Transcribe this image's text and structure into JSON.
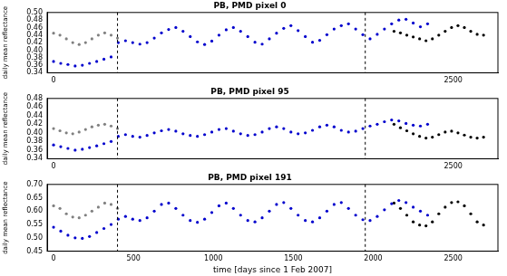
{
  "chart_data": [
    {
      "type": "scatter",
      "title": "PB, PMD pixel 0",
      "y_label": "daily mean reflectance",
      "xlim": [
        -40,
        2780
      ],
      "xticks": [
        0,
        2500
      ],
      "ylim": [
        0.34,
        0.5
      ],
      "yticks": [
        0.34,
        0.36,
        0.38,
        {
          "value": 0.4,
          "label": "0.40"
        },
        0.42,
        0.44,
        0.46,
        0.48,
        {
          "value": 0.5,
          "label": "0.50"
        }
      ],
      "vlines": [
        400,
        1950
      ],
      "grid": false,
      "series": [
        {
          "color": "#808080",
          "marker": "circle",
          "x": [
            0,
            40,
            80,
            120,
            160,
            200,
            240,
            280,
            320,
            360,
            400
          ],
          "values": [
            0.445,
            0.44,
            0.43,
            0.42,
            0.415,
            0.42,
            0.43,
            0.44,
            0.446,
            0.44,
            0.432
          ]
        },
        {
          "color": "#0000cd",
          "marker": "circle",
          "x": [
            0,
            45,
            90,
            135,
            180,
            225,
            270,
            315,
            360,
            405,
            450,
            495,
            540,
            585,
            630,
            675,
            720,
            765,
            810,
            855,
            900,
            945,
            990,
            1035,
            1080,
            1125,
            1170,
            1215,
            1260,
            1305,
            1350,
            1395,
            1440,
            1485,
            1530,
            1575,
            1620,
            1665,
            1710,
            1755,
            1800,
            1845,
            1890,
            1935,
            1980,
            2025,
            2070,
            2115,
            2160,
            2205,
            2250,
            2295,
            2340
          ],
          "values": [
            0.37,
            0.365,
            0.362,
            0.358,
            0.36,
            0.365,
            0.37,
            0.376,
            0.382,
            0.42,
            0.425,
            0.42,
            0.416,
            0.42,
            0.432,
            0.446,
            0.455,
            0.46,
            0.45,
            0.436,
            0.422,
            0.415,
            0.424,
            0.44,
            0.454,
            0.46,
            0.45,
            0.436,
            0.421,
            0.416,
            0.43,
            0.445,
            0.458,
            0.465,
            0.452,
            0.436,
            0.421,
            0.426,
            0.441,
            0.456,
            0.465,
            0.47,
            0.456,
            0.441,
            0.43,
            0.442,
            0.456,
            0.47,
            0.48,
            0.482,
            0.472,
            0.462,
            0.47
          ]
        },
        {
          "color": "#000000",
          "marker": "circle",
          "x": [
            2130,
            2170,
            2210,
            2250,
            2290,
            2330,
            2370,
            2410,
            2450,
            2490,
            2530,
            2570,
            2610,
            2650,
            2690
          ],
          "values": [
            0.45,
            0.446,
            0.44,
            0.435,
            0.43,
            0.425,
            0.43,
            0.44,
            0.45,
            0.46,
            0.465,
            0.46,
            0.45,
            0.442,
            0.44
          ]
        }
      ]
    },
    {
      "type": "scatter",
      "title": "PB, PMD pixel 95",
      "y_label": "daily mean reflectance",
      "xlim": [
        -40,
        2780
      ],
      "xticks": [
        0,
        2500
      ],
      "ylim": [
        0.34,
        0.48
      ],
      "yticks": [
        0.34,
        0.36,
        0.38,
        {
          "value": 0.4,
          "label": "0.40"
        },
        0.42,
        0.44,
        0.46,
        0.48
      ],
      "vlines": [
        400,
        1950
      ],
      "grid": false,
      "series": [
        {
          "color": "#808080",
          "marker": "circle",
          "x": [
            0,
            40,
            80,
            120,
            160,
            200,
            240,
            280,
            320,
            360,
            400
          ],
          "values": [
            0.41,
            0.405,
            0.4,
            0.398,
            0.402,
            0.408,
            0.414,
            0.418,
            0.42,
            0.416,
            0.41
          ]
        },
        {
          "color": "#0000cd",
          "marker": "circle",
          "x": [
            0,
            45,
            90,
            135,
            180,
            225,
            270,
            315,
            360,
            405,
            450,
            495,
            540,
            585,
            630,
            675,
            720,
            765,
            810,
            855,
            900,
            945,
            990,
            1035,
            1080,
            1125,
            1170,
            1215,
            1260,
            1305,
            1350,
            1395,
            1440,
            1485,
            1530,
            1575,
            1620,
            1665,
            1710,
            1755,
            1800,
            1845,
            1890,
            1935,
            1980,
            2025,
            2070,
            2115,
            2160,
            2205,
            2250,
            2295,
            2340
          ],
          "values": [
            0.372,
            0.368,
            0.364,
            0.36,
            0.362,
            0.366,
            0.37,
            0.375,
            0.38,
            0.392,
            0.396,
            0.392,
            0.39,
            0.394,
            0.4,
            0.405,
            0.408,
            0.404,
            0.398,
            0.394,
            0.392,
            0.396,
            0.402,
            0.408,
            0.41,
            0.404,
            0.398,
            0.394,
            0.396,
            0.402,
            0.41,
            0.414,
            0.41,
            0.402,
            0.398,
            0.4,
            0.406,
            0.414,
            0.418,
            0.414,
            0.406,
            0.402,
            0.404,
            0.41,
            0.416,
            0.42,
            0.426,
            0.43,
            0.428,
            0.422,
            0.418,
            0.416,
            0.42
          ]
        },
        {
          "color": "#000000",
          "marker": "circle",
          "x": [
            2130,
            2170,
            2210,
            2250,
            2290,
            2330,
            2370,
            2410,
            2450,
            2490,
            2530,
            2570,
            2610,
            2650,
            2690
          ],
          "values": [
            0.42,
            0.412,
            0.405,
            0.398,
            0.392,
            0.388,
            0.39,
            0.396,
            0.402,
            0.404,
            0.4,
            0.395,
            0.39,
            0.388,
            0.39
          ]
        }
      ]
    },
    {
      "type": "scatter",
      "title": "PB, PMD pixel 191",
      "y_label": "daily mean reflectance",
      "x_label": "time [days since 1 Feb 2007]",
      "xlim": [
        -40,
        2780
      ],
      "xticks": [
        0,
        500,
        1000,
        1500,
        2000,
        2500
      ],
      "ylim": [
        0.45,
        0.7
      ],
      "yticks": [
        0.45,
        {
          "value": 0.5,
          "label": "0.50"
        },
        0.55,
        {
          "value": 0.6,
          "label": "0.60"
        },
        0.65,
        {
          "value": 0.7,
          "label": "0.70"
        }
      ],
      "vlines": [
        400,
        1950
      ],
      "grid": false,
      "series": [
        {
          "color": "#808080",
          "marker": "circle",
          "x": [
            0,
            40,
            80,
            120,
            160,
            200,
            240,
            280,
            320,
            360,
            400
          ],
          "values": [
            0.62,
            0.61,
            0.59,
            0.578,
            0.575,
            0.585,
            0.6,
            0.615,
            0.63,
            0.625,
            0.61
          ]
        },
        {
          "color": "#0000cd",
          "marker": "circle",
          "x": [
            0,
            45,
            90,
            135,
            180,
            225,
            270,
            315,
            360,
            405,
            450,
            495,
            540,
            585,
            630,
            675,
            720,
            765,
            810,
            855,
            900,
            945,
            990,
            1035,
            1080,
            1125,
            1170,
            1215,
            1260,
            1305,
            1350,
            1395,
            1440,
            1485,
            1530,
            1575,
            1620,
            1665,
            1710,
            1755,
            1800,
            1845,
            1890,
            1935,
            1980,
            2025,
            2070,
            2115,
            2160,
            2205,
            2250,
            2295,
            2340
          ],
          "values": [
            0.54,
            0.525,
            0.51,
            0.5,
            0.498,
            0.505,
            0.52,
            0.535,
            0.55,
            0.57,
            0.58,
            0.57,
            0.565,
            0.575,
            0.6,
            0.625,
            0.63,
            0.61,
            0.585,
            0.565,
            0.558,
            0.57,
            0.595,
            0.62,
            0.63,
            0.61,
            0.585,
            0.565,
            0.56,
            0.575,
            0.6,
            0.625,
            0.632,
            0.61,
            0.585,
            0.565,
            0.56,
            0.575,
            0.6,
            0.625,
            0.632,
            0.61,
            0.585,
            0.568,
            0.565,
            0.58,
            0.605,
            0.628,
            0.64,
            0.632,
            0.615,
            0.6,
            0.585
          ]
        },
        {
          "color": "#000000",
          "marker": "circle",
          "x": [
            2130,
            2170,
            2210,
            2250,
            2290,
            2330,
            2370,
            2410,
            2450,
            2490,
            2530,
            2570,
            2610,
            2650,
            2690
          ],
          "values": [
            0.63,
            0.61,
            0.585,
            0.56,
            0.548,
            0.545,
            0.56,
            0.59,
            0.615,
            0.632,
            0.635,
            0.62,
            0.59,
            0.56,
            0.548
          ]
        }
      ]
    }
  ]
}
